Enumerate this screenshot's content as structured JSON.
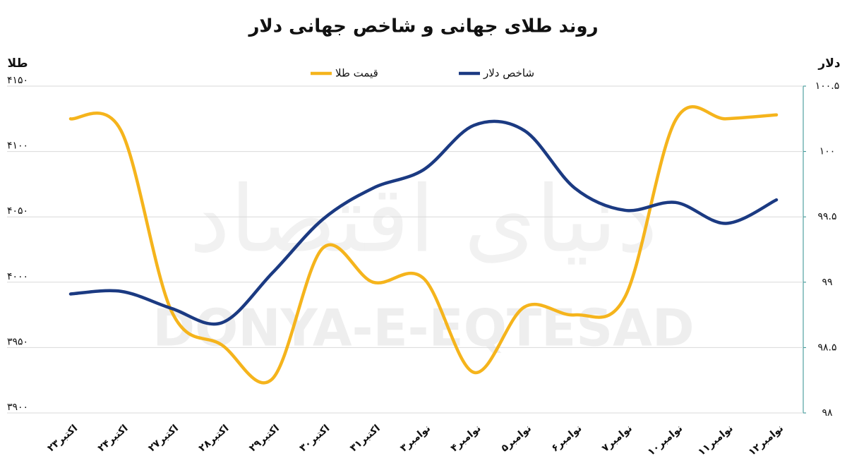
{
  "chart_data": {
    "type": "line",
    "title": "روند طلای جهانی و شاخص جهانی دلار",
    "y_label": "طلا",
    "y2_label": "دلار",
    "watermark": "DONYA-E-EQTESAD",
    "watermark_fa": "دنیای اقتصاد",
    "categories": [
      "۲۳اکتبر",
      "۲۴اکتبر",
      "۲۷اکتبر",
      "۲۸اکتبر",
      "۲۹اکتبر",
      "۳۰اکتبر",
      "۳۱اکتبر",
      "۳نوامبر",
      "۴نوامبر",
      "۵نوامبر",
      "۶نوامبر",
      "۷نوامبر",
      "۱۰نوامبر",
      "۱۱نوامبر",
      "۱۲نوامبر"
    ],
    "series": [
      {
        "name": "قیمت طلا",
        "color": "#f5b41c",
        "axis": "y",
        "values": [
          4125,
          4116,
          3978,
          3952,
          3926,
          4026,
          4000,
          4003,
          3931,
          3981,
          3975,
          3989,
          4124,
          4125,
          4128
        ]
      },
      {
        "name": "شاخص دلار",
        "color": "#1b3a82",
        "axis": "y2",
        "values": [
          98.91,
          98.93,
          98.8,
          98.69,
          99.07,
          99.48,
          99.72,
          99.86,
          100.2,
          100.16,
          99.72,
          99.55,
          99.61,
          99.45,
          99.63
        ]
      }
    ],
    "ylim": [
      3900,
      4150
    ],
    "yticks": [
      {
        "value": 3900,
        "label": "۳۹۰۰"
      },
      {
        "value": 3950,
        "label": "۳۹۵۰"
      },
      {
        "value": 4000,
        "label": "۴۰۰۰"
      },
      {
        "value": 4050,
        "label": "۴۰۵۰"
      },
      {
        "value": 4100,
        "label": "۴۱۰۰"
      },
      {
        "value": 4150,
        "label": "۴۱۵۰"
      }
    ],
    "y2lim": [
      98,
      100.5
    ],
    "y2ticks": [
      {
        "value": 98,
        "label": "۹۸"
      },
      {
        "value": 98.5,
        "label": "۹۸.۵"
      },
      {
        "value": 99,
        "label": "۹۹"
      },
      {
        "value": 99.5,
        "label": "۹۹.۵"
      },
      {
        "value": 100,
        "label": "۱۰۰"
      },
      {
        "value": 100.5,
        "label": "۱۰۰.۵"
      }
    ],
    "grid": true,
    "legend": "top"
  }
}
